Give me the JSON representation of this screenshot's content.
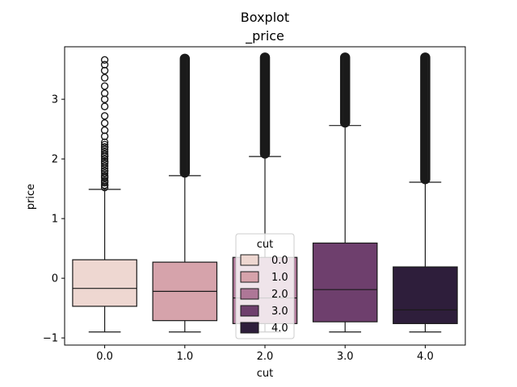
{
  "chart_data": {
    "type": "box",
    "title_line1": "Boxplot",
    "title_line2": "_price",
    "xlabel": "cut",
    "ylabel": "price",
    "categories": [
      "0.0",
      "1.0",
      "2.0",
      "3.0",
      "4.0"
    ],
    "yticks": [
      "3",
      "2",
      "1",
      "0",
      "−1"
    ],
    "ytick_values": [
      3,
      2,
      1,
      0,
      -1
    ],
    "ylim": [
      -1.12,
      3.88
    ],
    "boxes": [
      {
        "category": "0.0",
        "q1": -0.47,
        "median": -0.17,
        "q3": 0.31,
        "whisker_low": -0.9,
        "whisker_high": 1.49,
        "outlier_min": 1.52,
        "outlier_max": 3.66,
        "sparse_outliers": [
          1.56,
          1.62,
          1.7,
          1.8,
          1.95,
          2.05,
          2.2,
          2.38,
          2.48,
          2.6,
          2.72,
          2.88,
          3.0,
          3.1,
          3.22,
          3.36,
          3.48,
          3.58,
          3.66
        ],
        "color": "#eed7d1"
      },
      {
        "category": "1.0",
        "q1": -0.71,
        "median": -0.22,
        "q3": 0.27,
        "whisker_low": -0.9,
        "whisker_high": 1.72,
        "outlier_min": 1.75,
        "outlier_max": 3.7,
        "sparse_outliers": [],
        "color": "#d6a3ab"
      },
      {
        "category": "2.0",
        "q1": -0.76,
        "median": -0.33,
        "q3": 0.35,
        "whisker_low": -0.9,
        "whisker_high": 2.04,
        "outlier_min": 2.07,
        "outlier_max": 3.72,
        "sparse_outliers": [],
        "color": "#ae7797"
      },
      {
        "category": "3.0",
        "q1": -0.73,
        "median": -0.19,
        "q3": 0.59,
        "whisker_low": -0.9,
        "whisker_high": 2.56,
        "outlier_min": 2.59,
        "outlier_max": 3.72,
        "sparse_outliers": [],
        "color": "#6e3f6d"
      },
      {
        "category": "4.0",
        "q1": -0.76,
        "median": -0.53,
        "q3": 0.19,
        "whisker_low": -0.9,
        "whisker_high": 1.61,
        "outlier_min": 1.64,
        "outlier_max": 3.72,
        "sparse_outliers": [],
        "color": "#2e1e3b"
      }
    ],
    "legend": {
      "title": "cut",
      "placement": "lower-center",
      "entries": [
        {
          "label": "0.0",
          "color": "#eed7d1"
        },
        {
          "label": "1.0",
          "color": "#d6a3ab"
        },
        {
          "label": "2.0",
          "color": "#ae7797"
        },
        {
          "label": "3.0",
          "color": "#6e3f6d"
        },
        {
          "label": "4.0",
          "color": "#2e1e3b"
        }
      ]
    },
    "grid": false
  }
}
